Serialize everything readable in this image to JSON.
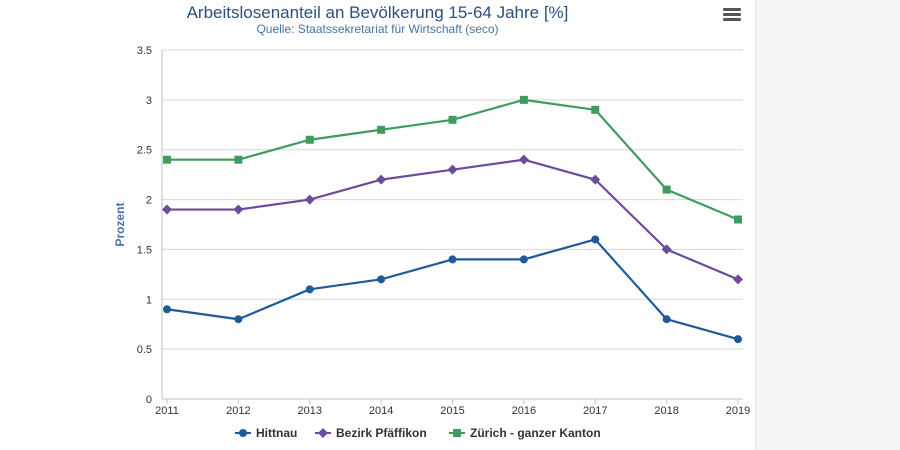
{
  "chart_data": {
    "type": "line",
    "title": "Arbeitslosenanteil an Bevölkerung 15-64 Jahre [%]",
    "subtitle": "Quelle: Staatssekretariat für Wirtschaft (seco)",
    "xlabel": "",
    "ylabel": "Prozent",
    "x": [
      "2011",
      "2012",
      "2013",
      "2014",
      "2015",
      "2016",
      "2017",
      "2018",
      "2019"
    ],
    "ylim": [
      0,
      3.5
    ],
    "yticks": [
      "0",
      "0.5",
      "1",
      "1.5",
      "2",
      "2.5",
      "3",
      "3.5"
    ],
    "grid": true,
    "legend_position": "bottom",
    "series": [
      {
        "name": "Hittnau",
        "color": "#1f5a9a",
        "marker": "circle",
        "values": [
          0.9,
          0.8,
          1.1,
          1.2,
          1.4,
          1.4,
          1.6,
          0.8,
          0.6
        ]
      },
      {
        "name": "Bezirk Pfäffikon",
        "color": "#6b4c9a",
        "marker": "diamond",
        "values": [
          1.9,
          1.9,
          2.0,
          2.2,
          2.3,
          2.4,
          2.2,
          1.5,
          1.2
        ]
      },
      {
        "name": "Zürich - ganzer Kanton",
        "color": "#3f9b5e",
        "marker": "square",
        "values": [
          2.4,
          2.4,
          2.6,
          2.7,
          2.8,
          3.0,
          2.9,
          2.1,
          1.8
        ]
      }
    ]
  },
  "menu": {
    "icon": "hamburger-menu-icon"
  }
}
